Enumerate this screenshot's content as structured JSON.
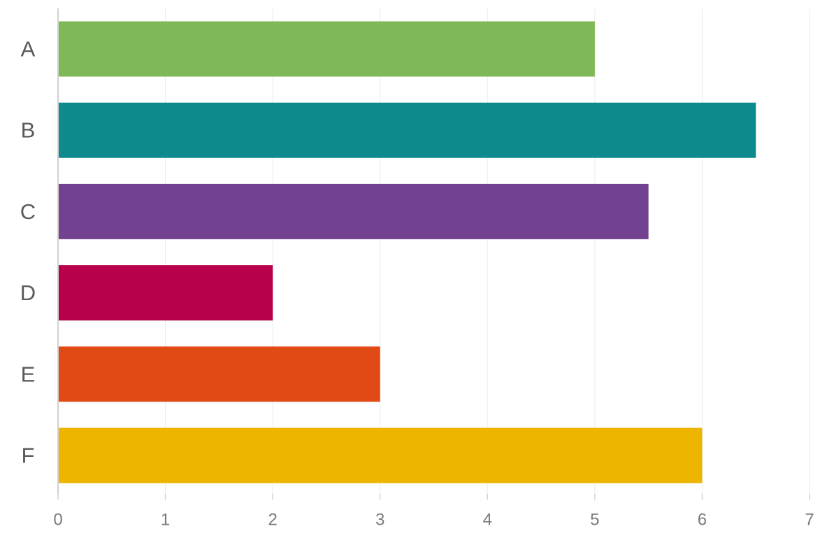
{
  "chart_data": {
    "type": "bar",
    "orientation": "horizontal",
    "title": "",
    "xlabel": "",
    "ylabel": "",
    "categories": [
      "A",
      "B",
      "C",
      "D",
      "E",
      "F"
    ],
    "values": [
      5,
      6.5,
      5.5,
      2,
      3,
      6
    ],
    "colors": [
      "#7fb857",
      "#0d8b8c",
      "#72418f",
      "#b8004b",
      "#e24a15",
      "#eeb500"
    ],
    "xlim": [
      0,
      7
    ],
    "xticks": [
      "0",
      "1",
      "2",
      "3",
      "4",
      "5",
      "6",
      "7"
    ],
    "grid": true,
    "legend": "none"
  }
}
